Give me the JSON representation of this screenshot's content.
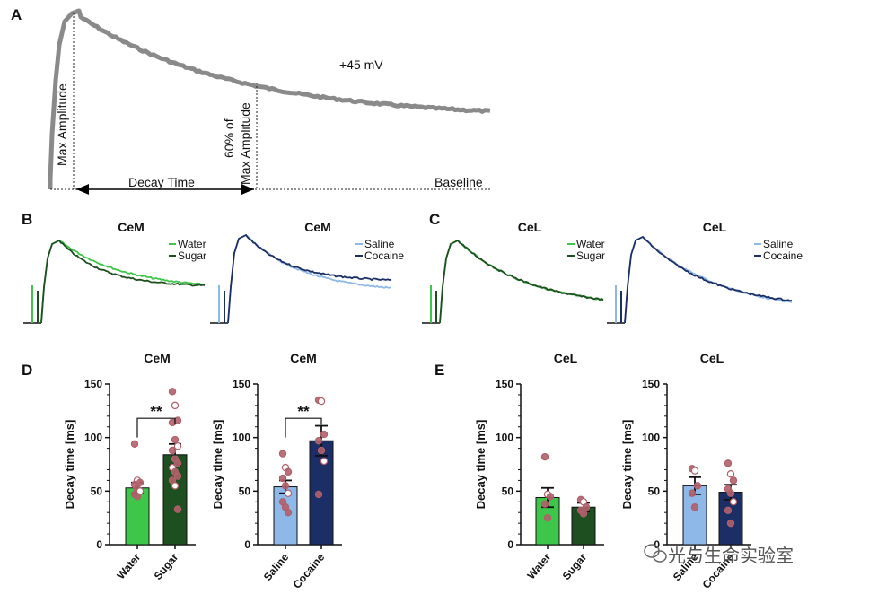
{
  "panel_labels": {
    "a": "A",
    "b": "B",
    "c": "C",
    "d": "D",
    "e": "E"
  },
  "panel_a": {
    "voltage_label": "+45 mV",
    "max_amplitude_label": "Max Amplitude",
    "sixty_pct_line1": "60% of",
    "sixty_pct_line2": "Max Amplitude",
    "decay_time_label": "Decay Time",
    "baseline_label": "Baseline",
    "trace_color": "#8a8a8a"
  },
  "colors": {
    "water": "#3ec64a",
    "sugar": "#1e4f20",
    "saline": "#8db8e8",
    "cocaine": "#1b2f66",
    "dot": "#b0606a",
    "watermark": "#555555"
  },
  "traces": [
    {
      "title": "CeM",
      "legend": [
        "Water",
        "Sugar"
      ],
      "series": [
        "water",
        "sugar"
      ]
    },
    {
      "title": "CeM",
      "legend": [
        "Saline",
        "Cocaine"
      ],
      "series": [
        "saline",
        "cocaine"
      ]
    },
    {
      "title": "CeL",
      "legend": [
        "Water",
        "Sugar"
      ],
      "series": [
        "water",
        "sugar"
      ]
    },
    {
      "title": "CeL",
      "legend": [
        "Saline",
        "Cocaine"
      ],
      "series": [
        "saline",
        "cocaine"
      ]
    }
  ],
  "chart_data": [
    {
      "type": "bar",
      "title": "CeM",
      "ylabel": "Decay time [ms]",
      "ylim": [
        0,
        150
      ],
      "yticks": [
        "0",
        "50",
        "100",
        "150"
      ],
      "categories": [
        "Water",
        "Sugar"
      ],
      "values": [
        53,
        84
      ],
      "sem": [
        5,
        10
      ],
      "bar_colors": [
        "water",
        "sugar"
      ],
      "points": [
        [
          94,
          60,
          58,
          56,
          52,
          50,
          47,
          45
        ],
        [
          143,
          130,
          116,
          114,
          98,
          92,
          88,
          80,
          76,
          72,
          68,
          64,
          60,
          55,
          33
        ]
      ],
      "significance": "**"
    },
    {
      "type": "bar",
      "title": "CeM",
      "ylabel": "Decay time [ms]",
      "ylim": [
        0,
        150
      ],
      "yticks": [
        "0",
        "50",
        "100",
        "150"
      ],
      "categories": [
        "Saline",
        "Cocaine"
      ],
      "values": [
        54,
        97
      ],
      "sem": [
        6,
        14
      ],
      "bar_colors": [
        "saline",
        "cocaine"
      ],
      "points": [
        [
          85,
          72,
          68,
          62,
          55,
          48,
          40,
          35,
          30
        ],
        [
          135,
          134,
          103,
          97,
          88,
          78,
          47
        ]
      ],
      "significance": "**"
    },
    {
      "type": "bar",
      "title": "CeL",
      "ylabel": "Decay time [ms]",
      "ylim": [
        0,
        150
      ],
      "yticks": [
        "0",
        "50",
        "100",
        "150"
      ],
      "categories": [
        "Water",
        "Sugar"
      ],
      "values": [
        44,
        35
      ],
      "sem": [
        9,
        4
      ],
      "bar_colors": [
        "water",
        "sugar"
      ],
      "points": [
        [
          82,
          47,
          45,
          38,
          25
        ],
        [
          42,
          40,
          35,
          32,
          29
        ]
      ],
      "significance": ""
    },
    {
      "type": "bar",
      "title": "CeL",
      "ylabel": "Decay time [ms]",
      "ylim": [
        0,
        150
      ],
      "yticks": [
        "0",
        "50",
        "100",
        "150"
      ],
      "categories": [
        "Saline",
        "Cocaine"
      ],
      "values": [
        55,
        49
      ],
      "sem": [
        8,
        7
      ],
      "bar_colors": [
        "saline",
        "cocaine"
      ],
      "points": [
        [
          71,
          69,
          55,
          48,
          35
        ],
        [
          76,
          66,
          60,
          52,
          48,
          40,
          32,
          20
        ]
      ],
      "significance": ""
    }
  ],
  "watermark": "光与生命实验室"
}
